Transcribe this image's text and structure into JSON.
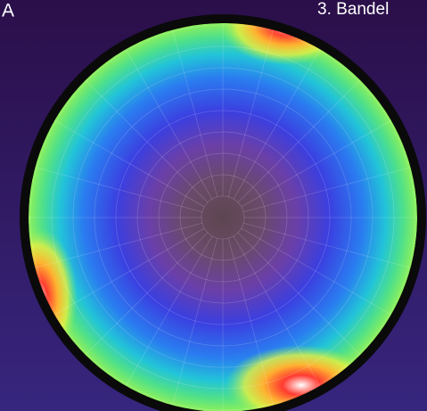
{
  "figure": {
    "label": "A",
    "caption": "3. Bandel"
  }
}
